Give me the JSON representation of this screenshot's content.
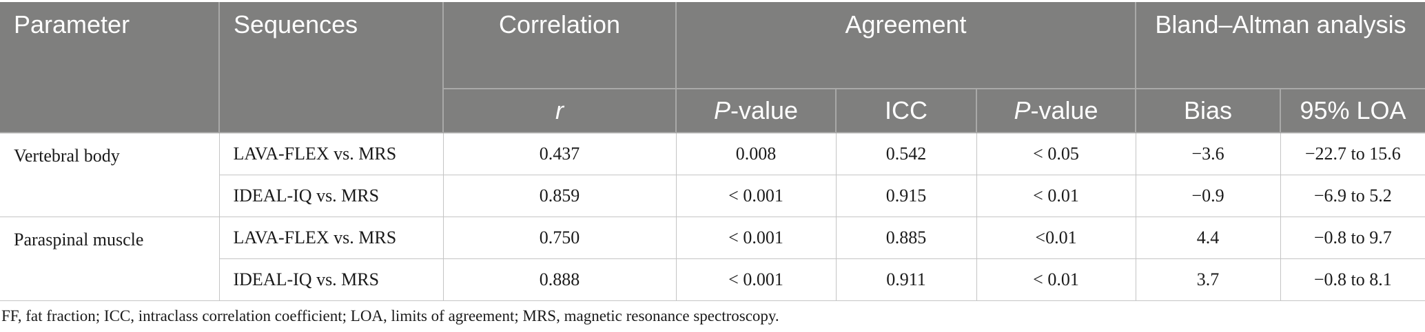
{
  "header": {
    "parameter": "Parameter",
    "sequences": "Sequences",
    "correlation": "Correlation",
    "agreement": "Agreement",
    "bland_altman": "Bland–Altman analysis",
    "r": "r",
    "p_italic": "P",
    "p_suffix": "-value",
    "icc": "ICC",
    "bias": "Bias",
    "loa": "95% LOA"
  },
  "rows": [
    {
      "parameter": "Vertebral body",
      "sequence": "LAVA-FLEX vs. MRS",
      "r": "0.437",
      "p1": "0.008",
      "icc": "0.542",
      "p2": "< 0.05",
      "bias": "−3.6",
      "loa": "−22.7 to 15.6"
    },
    {
      "parameter": "",
      "sequence": "IDEAL-IQ vs. MRS",
      "r": "0.859",
      "p1": "< 0.001",
      "icc": "0.915",
      "p2": "< 0.01",
      "bias": "−0.9",
      "loa": "−6.9 to 5.2"
    },
    {
      "parameter": "Paraspinal muscle",
      "sequence": "LAVA-FLEX vs. MRS",
      "r": "0.750",
      "p1": "< 0.001",
      "icc": "0.885",
      "p2": "<0.01",
      "bias": "4.4",
      "loa": "−0.8 to 9.7"
    },
    {
      "parameter": "",
      "sequence": "IDEAL-IQ vs. MRS",
      "r": "0.888",
      "p1": "< 0.001",
      "icc": "0.911",
      "p2": "< 0.01",
      "bias": "3.7",
      "loa": "−0.8 to 8.1"
    }
  ],
  "footnote": "FF, fat fraction; ICC, intraclass correlation coefficient; LOA, limits of agreement; MRS, magnetic resonance spectroscopy."
}
